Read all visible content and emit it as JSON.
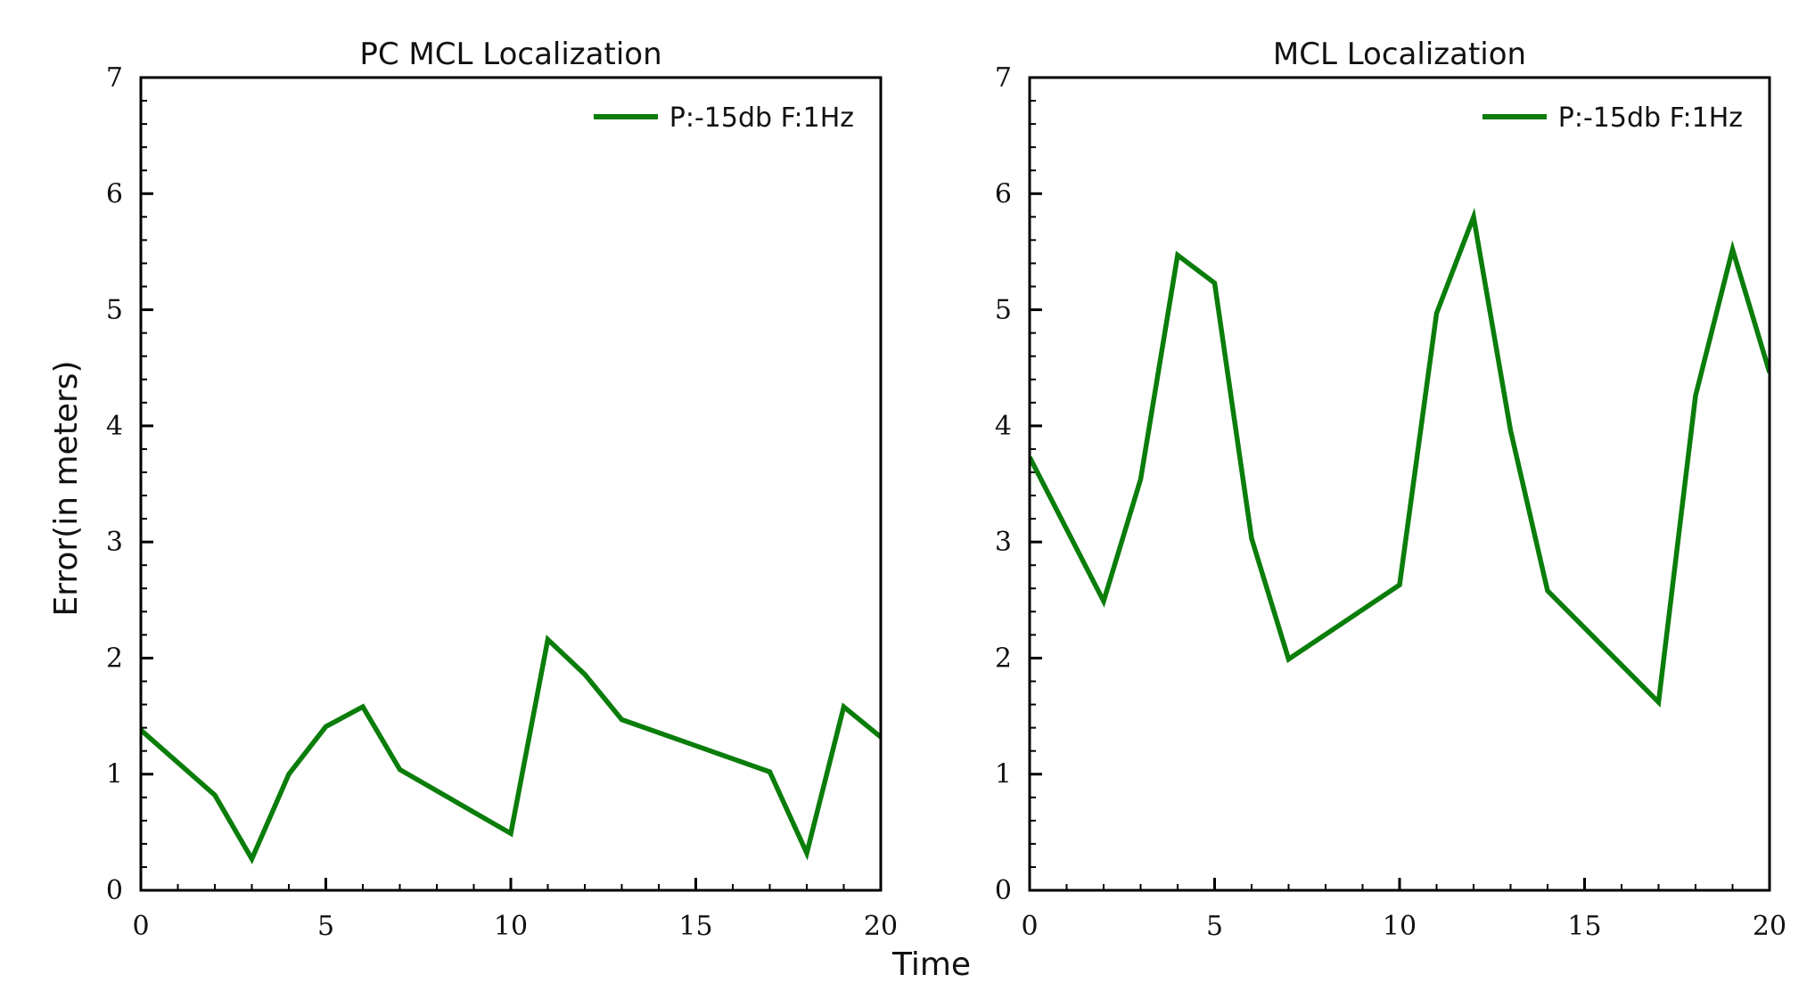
{
  "figure": {
    "xlabel": "Time",
    "ylabel": "Error(in meters)"
  },
  "colors": {
    "series": "#0a7d0a",
    "axes": "#000000"
  },
  "chart_data": [
    {
      "type": "line",
      "title": "PC MCL Localization",
      "xlabel": "Time",
      "ylabel": "Error(in meters)",
      "xlim": [
        0,
        20
      ],
      "ylim": [
        0,
        7
      ],
      "xticks": [
        0,
        5,
        10,
        15,
        20
      ],
      "yticks": [
        0,
        1,
        2,
        3,
        4,
        5,
        6,
        7
      ],
      "grid": false,
      "legend_position": "top-right",
      "series": [
        {
          "name": "P:-15db F:1Hz",
          "x": [
            0,
            2,
            3,
            4,
            5,
            6,
            7,
            10,
            11,
            12,
            13,
            17,
            18,
            19,
            20
          ],
          "y": [
            1.38,
            0.82,
            0.27,
            1.0,
            1.41,
            1.58,
            1.04,
            0.49,
            2.16,
            1.86,
            1.47,
            1.02,
            0.32,
            1.58,
            1.32
          ]
        }
      ]
    },
    {
      "type": "line",
      "title": "MCL Localization",
      "xlabel": "Time",
      "ylabel": "",
      "xlim": [
        0,
        20
      ],
      "ylim": [
        0,
        7
      ],
      "xticks": [
        0,
        5,
        10,
        15,
        20
      ],
      "yticks": [
        0,
        1,
        2,
        3,
        4,
        5,
        6,
        7
      ],
      "grid": false,
      "legend_position": "top-right",
      "series": [
        {
          "name": "P:-15db F:1Hz",
          "x": [
            0,
            2,
            3,
            4,
            5,
            6,
            7,
            10,
            11,
            12,
            13,
            14,
            17,
            18,
            19,
            20
          ],
          "y": [
            3.73,
            2.49,
            3.54,
            5.47,
            5.23,
            3.03,
            1.99,
            2.63,
            4.97,
            5.8,
            3.96,
            2.58,
            1.62,
            4.26,
            5.52,
            4.46
          ]
        }
      ]
    }
  ]
}
